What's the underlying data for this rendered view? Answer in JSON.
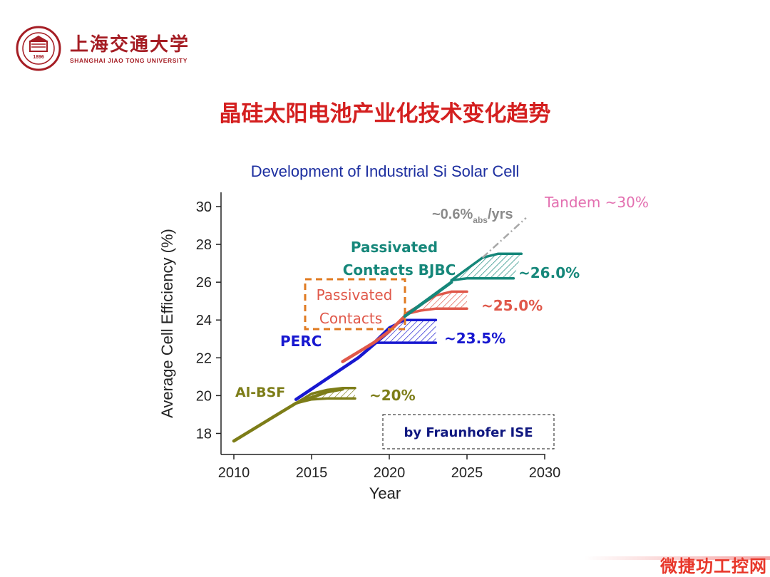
{
  "header": {
    "logo_cn": "上海交通大学",
    "logo_en": "SHANGHAI JIAO TONG UNIVERSITY",
    "seal_year": "1896",
    "slide_title": "晶硅太阳电池产业化技术变化趋势"
  },
  "watermark": "微捷功工控网",
  "colors": {
    "title_red": "#d41f1f",
    "chart_title": "#1d2fa0",
    "al_bsf": "#7d7d18",
    "perc": "#1818d0",
    "passivated": "#e0584a",
    "bjbc": "#16877a",
    "tandem": "#e36fb0",
    "trend": "#a8a8a8",
    "box_orange": "#e07a20",
    "fraunhofer_blue": "#101880"
  },
  "chart_data": {
    "type": "line",
    "title": "Development of Industrial Si Solar Cell",
    "xlabel": "Year",
    "ylabel": "Average Cell Efficiency (%)",
    "xlim": [
      2010,
      2030
    ],
    "ylim": [
      17,
      31
    ],
    "xticks": [
      "2010",
      "2015",
      "2020",
      "2025",
      "2030"
    ],
    "yticks": [
      "18",
      "20",
      "22",
      "24",
      "26",
      "28",
      "30"
    ],
    "grid": false,
    "series": [
      {
        "name": "Al-BSF",
        "points": [
          [
            2010,
            17.6
          ],
          [
            2012,
            18.6
          ],
          [
            2014,
            19.6
          ],
          [
            2015,
            19.9
          ],
          [
            2016,
            20.2
          ],
          [
            2017,
            20.35
          ]
        ],
        "band_upper": [
          [
            2014,
            19.6
          ],
          [
            2015,
            20.1
          ],
          [
            2016,
            20.3
          ],
          [
            2017,
            20.4
          ],
          [
            2017.8,
            20.4
          ]
        ],
        "band_lower": [
          [
            2014,
            19.6
          ],
          [
            2015,
            19.8
          ],
          [
            2016,
            19.85
          ],
          [
            2017,
            19.85
          ],
          [
            2017.8,
            19.85
          ]
        ],
        "label": "~20%"
      },
      {
        "name": "PERC",
        "points": [
          [
            2014,
            19.8
          ],
          [
            2016,
            20.9
          ],
          [
            2018,
            22.0
          ],
          [
            2019,
            22.7
          ],
          [
            2020,
            23.4
          ]
        ],
        "band_upper": [
          [
            2019,
            22.8
          ],
          [
            2020,
            23.6
          ],
          [
            2021,
            24.0
          ],
          [
            2022,
            24.0
          ],
          [
            2023,
            24.0
          ]
        ],
        "band_lower": [
          [
            2019,
            22.8
          ],
          [
            2020,
            22.8
          ],
          [
            2021,
            22.8
          ],
          [
            2022,
            22.8
          ],
          [
            2023,
            22.8
          ]
        ],
        "label": "~23.5%"
      },
      {
        "name": "Passivated Contacts",
        "points": [
          [
            2017,
            21.8
          ],
          [
            2019,
            22.8
          ],
          [
            2020,
            23.4
          ],
          [
            2021,
            24.2
          ]
        ],
        "band_upper": [
          [
            2021,
            24.3
          ],
          [
            2022,
            24.8
          ],
          [
            2023,
            25.3
          ],
          [
            2024,
            25.5
          ],
          [
            2025,
            25.5
          ]
        ],
        "band_lower": [
          [
            2021,
            24.3
          ],
          [
            2022,
            24.5
          ],
          [
            2023,
            24.6
          ],
          [
            2024,
            24.6
          ],
          [
            2025,
            24.6
          ]
        ],
        "label": "~25.0%"
      },
      {
        "name": "Passivated Contacts BJBC",
        "points": [
          [
            2021,
            24.2
          ],
          [
            2022,
            24.8
          ],
          [
            2023,
            25.4
          ],
          [
            2024,
            26.0
          ]
        ],
        "band_upper": [
          [
            2024,
            26.1
          ],
          [
            2025,
            26.7
          ],
          [
            2026,
            27.3
          ],
          [
            2027,
            27.5
          ],
          [
            2028.5,
            27.5
          ]
        ],
        "band_lower": [
          [
            2024,
            26.1
          ],
          [
            2025,
            26.2
          ],
          [
            2026,
            26.2
          ],
          [
            2027,
            26.2
          ],
          [
            2028,
            26.2
          ]
        ],
        "label": "~26.0%"
      }
    ],
    "trend_line": {
      "points": [
        [
          2026,
          27.3
        ],
        [
          2028.8,
          29.4
        ]
      ],
      "label": "~0.6%",
      "label_sub": "abs",
      "label_suffix": "/yrs"
    },
    "annotations": {
      "al_bsf": "Al-BSF",
      "perc": "PERC",
      "passivated_line1": "Passivated",
      "passivated_line2": "Contacts",
      "bjbc_line1": "Passivated",
      "bjbc_line2": "Contacts BJBC",
      "tandem": "Tandem ~30%",
      "source": "by Fraunhofer ISE"
    }
  }
}
